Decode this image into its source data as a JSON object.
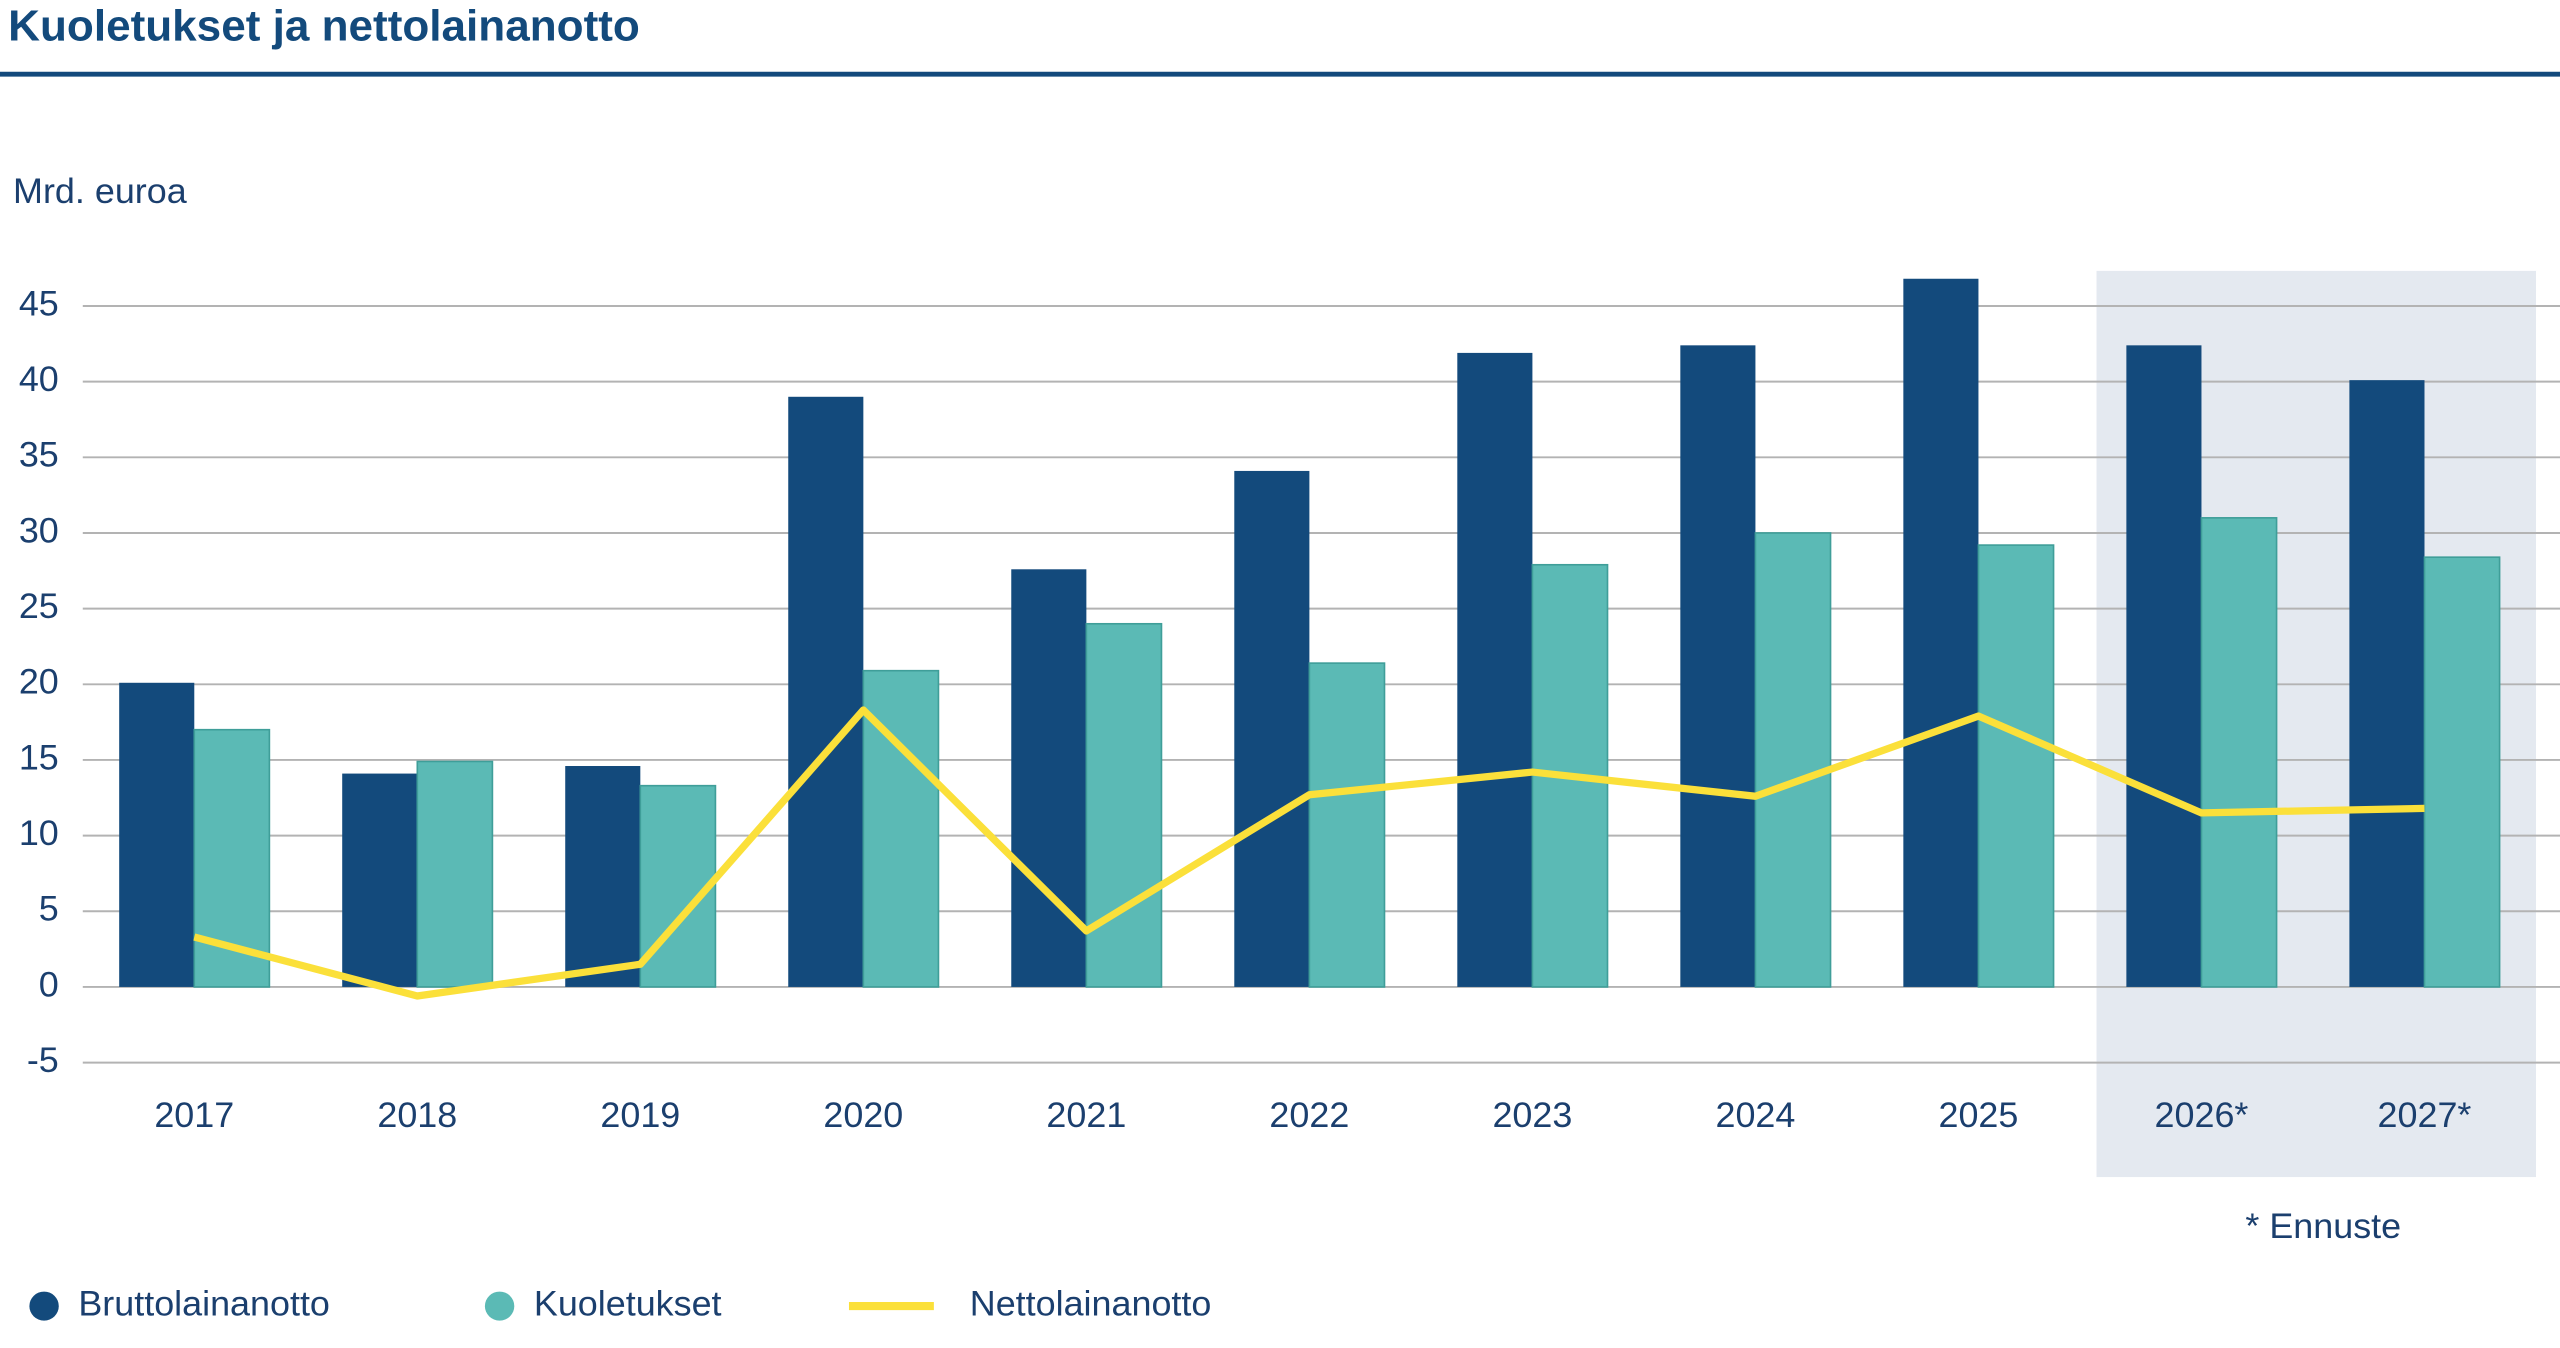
{
  "chart_data": {
    "type": "bar",
    "title": "Kuoletukset ja nettolainanotto",
    "y_label": "Mrd. euroa",
    "categories": [
      "2017",
      "2018",
      "2019",
      "2020",
      "2021",
      "2022",
      "2023",
      "2024",
      "2025",
      "2026*",
      "2027*"
    ],
    "series": [
      {
        "name": "Bruttolainanotto",
        "type": "bar",
        "color": "#134a7c",
        "values": [
          20.1,
          14.1,
          14.6,
          39.0,
          27.6,
          34.1,
          41.9,
          42.4,
          46.8,
          42.4,
          40.1
        ]
      },
      {
        "name": "Kuoletukset",
        "type": "bar",
        "color": "#5bbab5",
        "values": [
          17.0,
          14.9,
          13.3,
          20.9,
          24.0,
          21.4,
          27.9,
          30.0,
          29.2,
          31.0,
          28.4
        ]
      },
      {
        "name": "Nettolainanotto",
        "type": "line",
        "color": "#fbe03a",
        "values": [
          3.3,
          -0.6,
          1.5,
          18.3,
          3.7,
          12.7,
          14.2,
          12.6,
          17.9,
          11.5,
          11.8
        ]
      }
    ],
    "ylim": [
      -5,
      47
    ],
    "yticks": [
      -5,
      0,
      5,
      10,
      15,
      20,
      25,
      30,
      35,
      40,
      45
    ],
    "grid": true,
    "note": "* Ennuste",
    "legend": "bottom"
  }
}
